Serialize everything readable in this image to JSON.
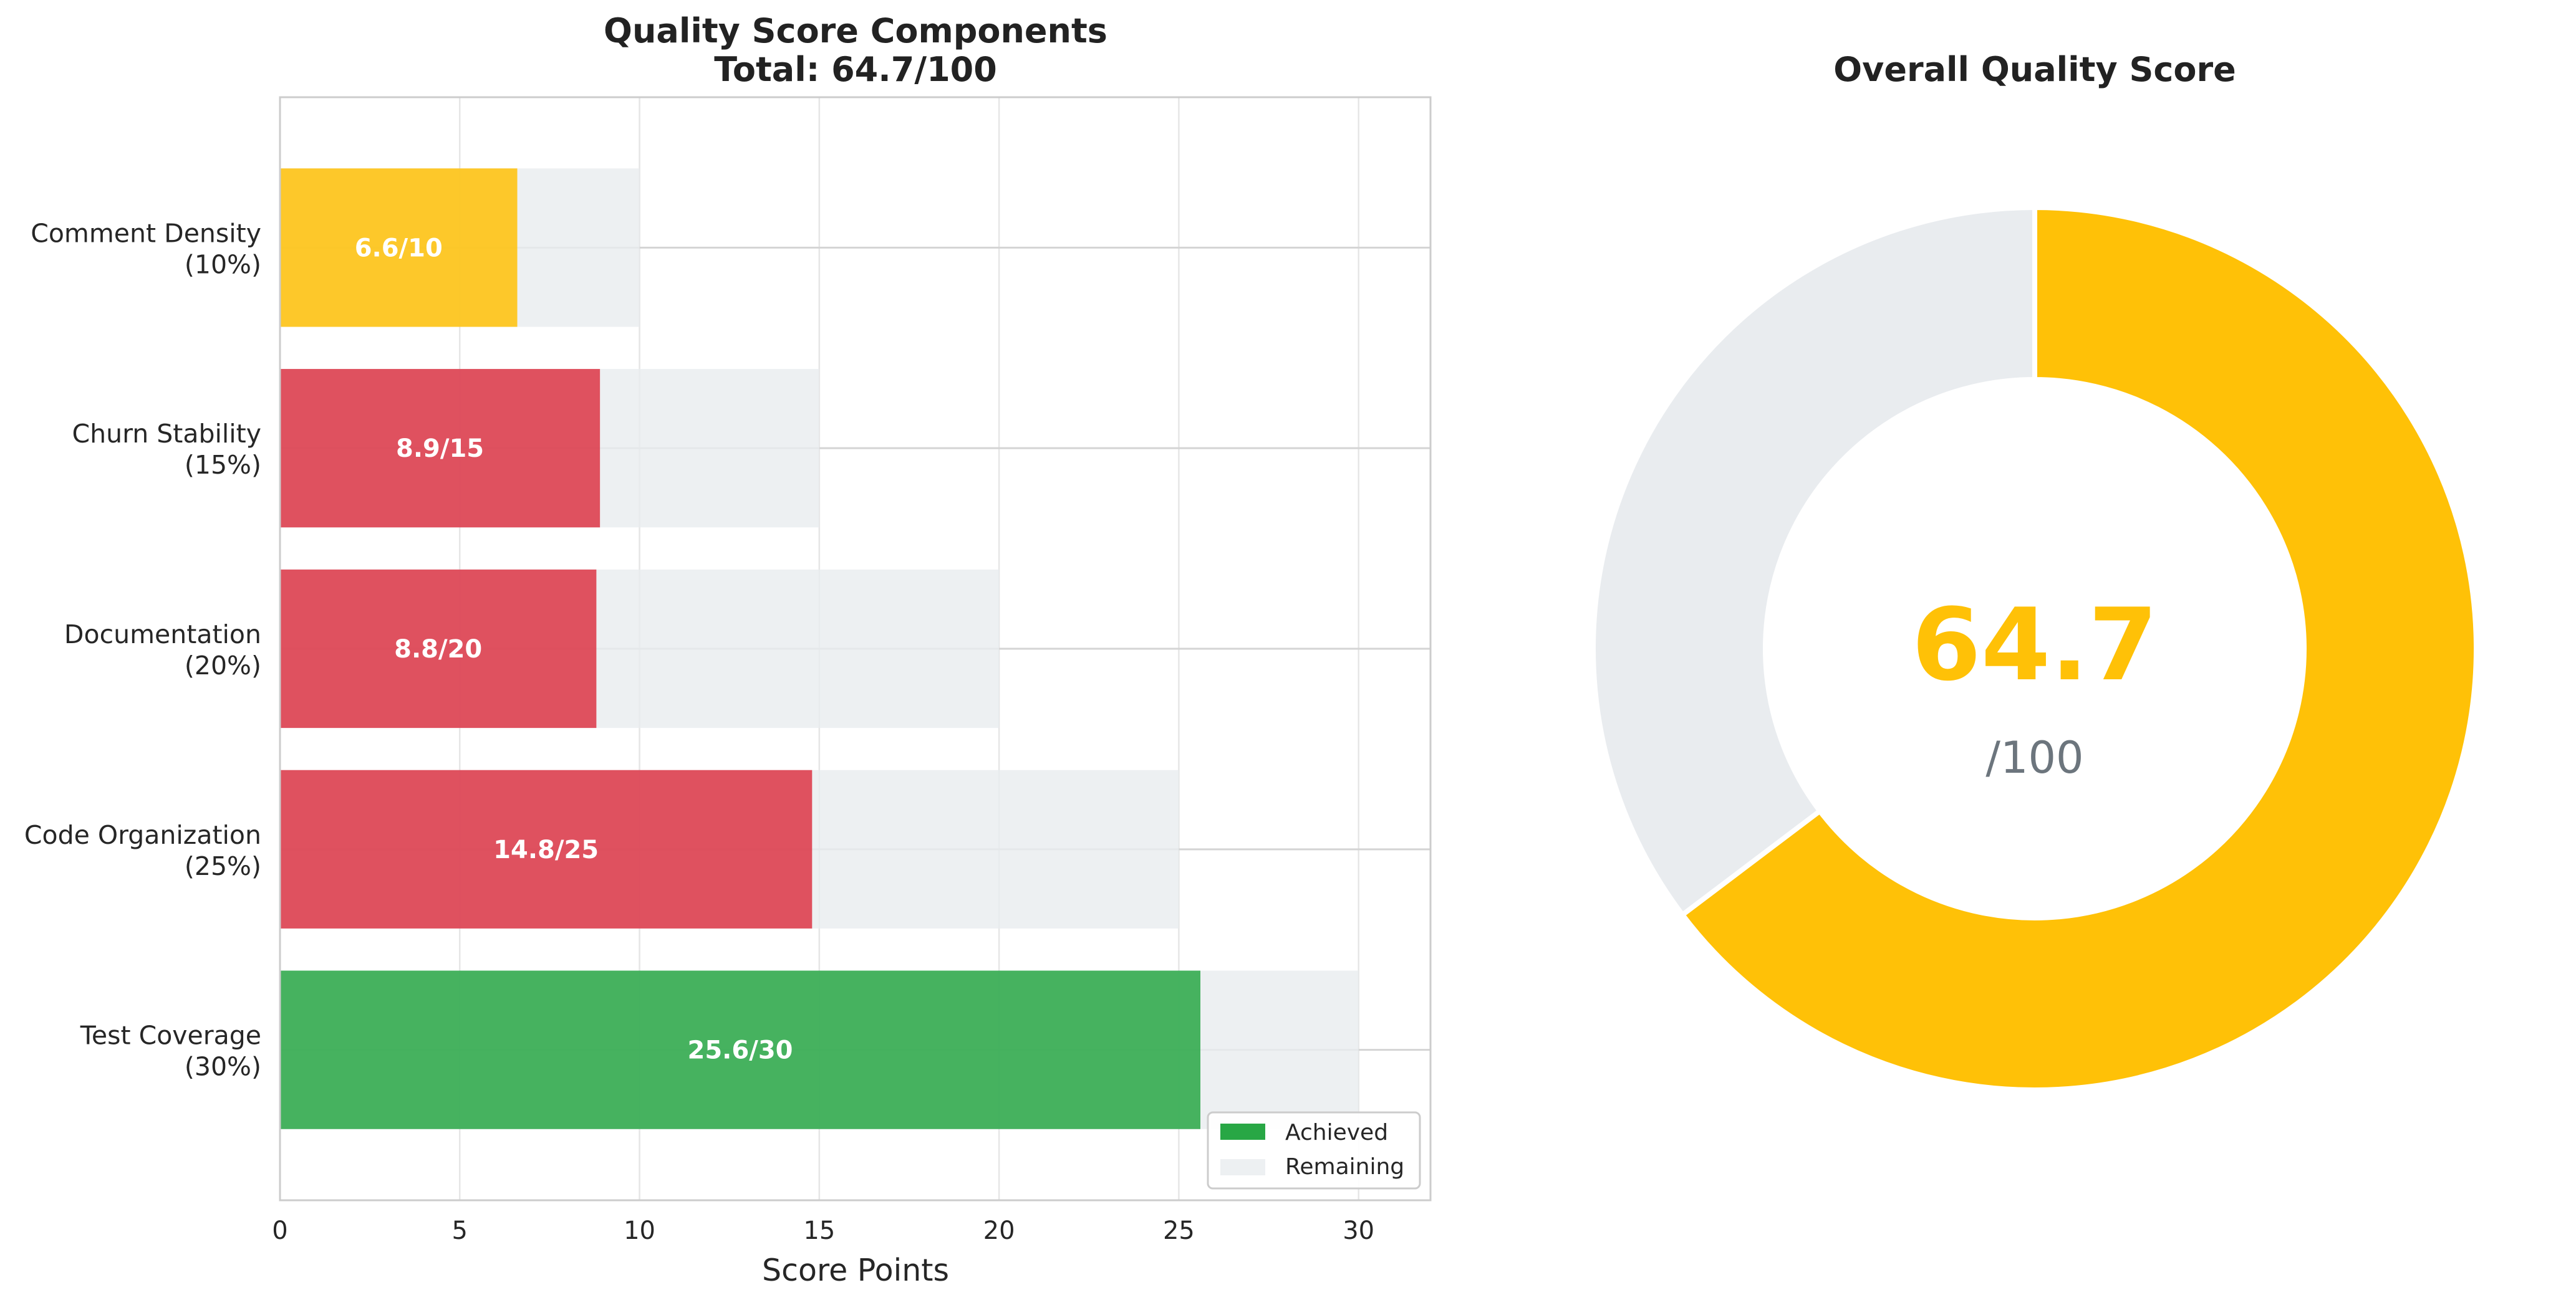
{
  "chart_data": [
    {
      "type": "bar",
      "orientation": "horizontal",
      "title": "Quality Score Components",
      "subtitle": "Total: 64.7/100",
      "xlabel": "Score Points",
      "ylabel": "",
      "xlim": [
        0,
        32
      ],
      "x_ticks": [
        "0",
        "5",
        "10",
        "15",
        "20",
        "25",
        "30"
      ],
      "grid": true,
      "legend_placement": "lower-right",
      "legend": [
        "Achieved",
        "Remaining"
      ],
      "categories": [
        {
          "name": "Test Coverage",
          "weight": "(30%)",
          "achieved": 25.6,
          "max": 30,
          "label": "25.6/30",
          "color": "#28a745"
        },
        {
          "name": "Code Organization",
          "weight": "(25%)",
          "achieved": 14.8,
          "max": 25,
          "label": "14.8/25",
          "color": "#dc3545"
        },
        {
          "name": "Documentation",
          "weight": "(20%)",
          "achieved": 8.8,
          "max": 20,
          "label": "8.8/20",
          "color": "#dc3545"
        },
        {
          "name": "Churn Stability",
          "weight": "(15%)",
          "achieved": 8.9,
          "max": 15,
          "label": "8.9/15",
          "color": "#dc3545"
        },
        {
          "name": "Comment Density",
          "weight": "(10%)",
          "achieved": 6.6,
          "max": 10,
          "label": "6.6/10",
          "color": "#ffc107"
        }
      ],
      "colors": {
        "achieved_legend": "#28a745",
        "remaining": "#e9ecef"
      }
    },
    {
      "type": "pie",
      "style": "donut",
      "title": "Overall Quality Score",
      "value": 64.7,
      "max": 100,
      "center_value": "64.7",
      "center_suffix": "/100",
      "colors": {
        "score": "#ffc107",
        "remaining": "#e9ecef",
        "center_text": "#ffc107",
        "suffix_text": "#6c757d"
      }
    }
  ]
}
